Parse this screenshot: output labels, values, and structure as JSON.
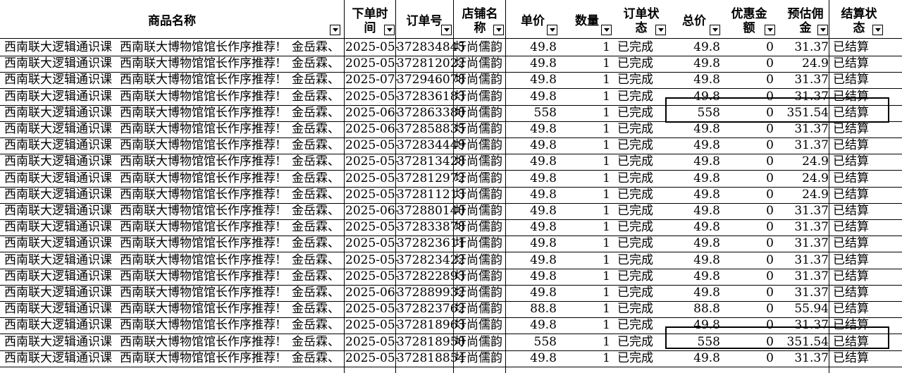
{
  "headers": {
    "product_name": "商品名称",
    "order_time": "下单时\n间",
    "order_no": "订单号",
    "shop_name": "店铺名\n称",
    "unit_price": "单价",
    "quantity": "数量",
    "order_status": "订单状\n态",
    "total_price": "总价",
    "discount": "优惠金\n额",
    "estimated_commission": "预估佣\n金",
    "settle_status": "结算状\n态"
  },
  "rows": [
    {
      "a": "西南联大逻辑通识课",
      "b": "西南联大博物馆馆长作序推荐!",
      "c": "金岳霖、",
      "time": "2025-05-",
      "order": "372834845",
      "shop": "圩尚儒韵",
      "price": "49.8",
      "qty": "1",
      "status": "已完成",
      "total": "49.8",
      "disc": "0",
      "comm": "31.37",
      "settle": "已结算"
    },
    {
      "a": "西南联大逻辑通识课",
      "b": "西南联大博物馆馆长作序推荐!",
      "c": "金岳霖、",
      "time": "2025-05-",
      "order": "372812022",
      "shop": "圩尚儒韵",
      "price": "49.8",
      "qty": "1",
      "status": "已完成",
      "total": "49.8",
      "disc": "0",
      "comm": "24.9",
      "settle": "已结算"
    },
    {
      "a": "西南联大逻辑通识课",
      "b": "西南联大博物馆馆长作序推荐!",
      "c": "金岳霖、",
      "time": "2025-07-",
      "order": "372946078",
      "shop": "圩尚儒韵",
      "price": "49.8",
      "qty": "1",
      "status": "已完成",
      "total": "49.8",
      "disc": "0",
      "comm": "31.37",
      "settle": "已结算"
    },
    {
      "a": "西南联大逻辑通识课",
      "b": "西南联大博物馆馆长作序推荐!",
      "c": "金岳霖、",
      "time": "2025-05-",
      "order": "372836183",
      "shop": "圩尚儒韵",
      "price": "49.8",
      "qty": "1",
      "status": "已完成",
      "total": "49.8",
      "disc": "0",
      "comm": "31.37",
      "settle": "已结算"
    },
    {
      "a": "西南联大逻辑通识课",
      "b": "西南联大博物馆馆长作序推荐!",
      "c": "金岳霖、",
      "time": "2025-06-",
      "order": "372863380",
      "shop": "圩尚儒韵",
      "price": "558",
      "qty": "1",
      "status": "已完成",
      "total": "558",
      "disc": "0",
      "comm": "351.54",
      "settle": "已结算"
    },
    {
      "a": "西南联大逻辑通识课",
      "b": "西南联大博物馆馆长作序推荐!",
      "c": "金岳霖、",
      "time": "2025-06-",
      "order": "372858835",
      "shop": "圩尚儒韵",
      "price": "49.8",
      "qty": "1",
      "status": "已完成",
      "total": "49.8",
      "disc": "0",
      "comm": "31.37",
      "settle": "已结算"
    },
    {
      "a": "西南联大逻辑通识课",
      "b": "西南联大博物馆馆长作序推荐!",
      "c": "金岳霖、",
      "time": "2025-05-",
      "order": "372834449",
      "shop": "圩尚儒韵",
      "price": "49.8",
      "qty": "1",
      "status": "已完成",
      "total": "49.8",
      "disc": "0",
      "comm": "31.37",
      "settle": "已结算"
    },
    {
      "a": "西南联大逻辑通识课",
      "b": "西南联大博物馆馆长作序推荐!",
      "c": "金岳霖、",
      "time": "2025-05-",
      "order": "372813428",
      "shop": "圩尚儒韵",
      "price": "49.8",
      "qty": "1",
      "status": "已完成",
      "total": "49.8",
      "disc": "0",
      "comm": "24.9",
      "settle": "已结算"
    },
    {
      "a": "西南联大逻辑通识课",
      "b": "西南联大博物馆馆长作序推荐!",
      "c": "金岳霖、",
      "time": "2025-05-",
      "order": "372812972",
      "shop": "圩尚儒韵",
      "price": "49.8",
      "qty": "1",
      "status": "已完成",
      "total": "49.8",
      "disc": "0",
      "comm": "24.9",
      "settle": "已结算"
    },
    {
      "a": "西南联大逻辑通识课",
      "b": "西南联大博物馆馆长作序推荐!",
      "c": "金岳霖、",
      "time": "2025-05-",
      "order": "372811213",
      "shop": "圩尚儒韵",
      "price": "49.8",
      "qty": "1",
      "status": "已完成",
      "total": "49.8",
      "disc": "0",
      "comm": "24.9",
      "settle": "已结算"
    },
    {
      "a": "西南联大逻辑通识课",
      "b": "西南联大博物馆馆长作序推荐!",
      "c": "金岳霖、",
      "time": "2025-06-",
      "order": "372880140",
      "shop": "圩尚儒韵",
      "price": "49.8",
      "qty": "1",
      "status": "已完成",
      "total": "49.8",
      "disc": "0",
      "comm": "31.37",
      "settle": "已结算"
    },
    {
      "a": "西南联大逻辑通识课",
      "b": "西南联大博物馆馆长作序推荐!",
      "c": "金岳霖、",
      "time": "2025-05-",
      "order": "372833878",
      "shop": "圩尚儒韵",
      "price": "49.8",
      "qty": "1",
      "status": "已完成",
      "total": "49.8",
      "disc": "0",
      "comm": "31.37",
      "settle": "已结算"
    },
    {
      "a": "西南联大逻辑通识课",
      "b": "西南联大博物馆馆长作序推荐!",
      "c": "金岳霖、",
      "time": "2025-05-",
      "order": "372823611",
      "shop": "圩尚儒韵",
      "price": "49.8",
      "qty": "1",
      "status": "已完成",
      "total": "49.8",
      "disc": "0",
      "comm": "31.37",
      "settle": "已结算"
    },
    {
      "a": "西南联大逻辑通识课",
      "b": "西南联大博物馆馆长作序推荐!",
      "c": "金岳霖、",
      "time": "2025-05-",
      "order": "372823422",
      "shop": "圩尚儒韵",
      "price": "49.8",
      "qty": "1",
      "status": "已完成",
      "total": "49.8",
      "disc": "0",
      "comm": "31.37",
      "settle": "已结算"
    },
    {
      "a": "西南联大逻辑通识课",
      "b": "西南联大博物馆馆长作序推荐!",
      "c": "金岳霖、",
      "time": "2025-05-",
      "order": "372822893",
      "shop": "圩尚儒韵",
      "price": "49.8",
      "qty": "1",
      "status": "已完成",
      "total": "49.8",
      "disc": "0",
      "comm": "31.37",
      "settle": "已结算"
    },
    {
      "a": "西南联大逻辑通识课",
      "b": "西南联大博物馆馆长作序推荐!",
      "c": "金岳霖、",
      "time": "2025-06-",
      "order": "372889932",
      "shop": "圩尚儒韵",
      "price": "49.8",
      "qty": "1",
      "status": "已完成",
      "total": "49.8",
      "disc": "0",
      "comm": "31.37",
      "settle": "已结算"
    },
    {
      "a": "西南联大逻辑通识课",
      "b": "西南联大博物馆馆长作序推荐!",
      "c": "金岳霖、",
      "time": "2025-05-",
      "order": "372823762",
      "shop": "圩尚儒韵",
      "price": "88.8",
      "qty": "1",
      "status": "已完成",
      "total": "88.8",
      "disc": "0",
      "comm": "55.94",
      "settle": "已结算"
    },
    {
      "a": "西南联大逻辑通识课",
      "b": "西南联大博物馆馆长作序推荐!",
      "c": "金岳霖、",
      "time": "2025-05-",
      "order": "372818963",
      "shop": "圩尚儒韵",
      "price": "49.8",
      "qty": "1",
      "status": "已完成",
      "total": "49.8",
      "disc": "0",
      "comm": "31.37",
      "settle": "已结算"
    },
    {
      "a": "西南联大逻辑通识课",
      "b": "西南联大博物馆馆长作序推荐!",
      "c": "金岳霖、",
      "time": "2025-05-",
      "order": "372818950",
      "shop": "圩尚儒韵",
      "price": "558",
      "qty": "1",
      "status": "已完成",
      "total": "558",
      "disc": "0",
      "comm": "351.54",
      "settle": "已结算"
    },
    {
      "a": "西南联大逻辑通识课",
      "b": "西南联大博物馆馆长作序推荐!",
      "c": "金岳霖、",
      "time": "2025-05-",
      "order": "372818854",
      "shop": "圩尚儒韵",
      "price": "49.8",
      "qty": "1",
      "status": "已完成",
      "total": "49.8",
      "disc": "0",
      "comm": "31.37",
      "settle": "已结算"
    }
  ]
}
